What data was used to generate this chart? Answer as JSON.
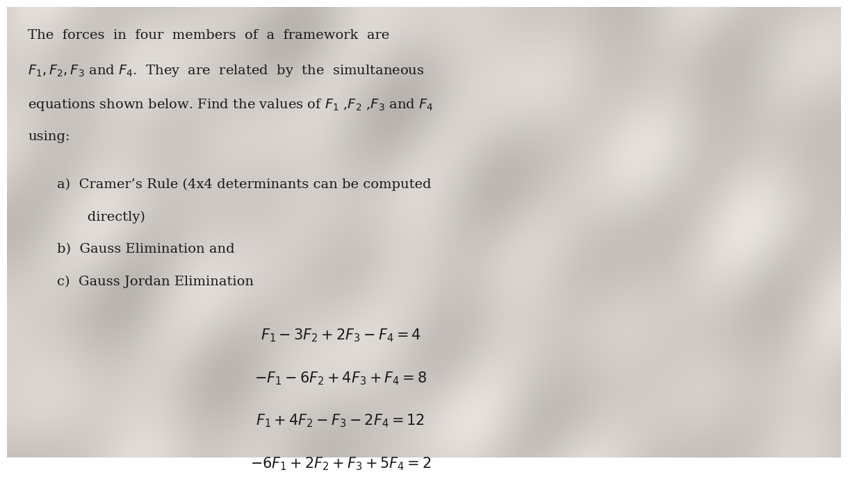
{
  "background_color_light": "#e8e4e0",
  "background_color_dark": "#b8b4b0",
  "text_color": "#1a1a1a",
  "fig_width": 12.0,
  "fig_height": 6.49,
  "line1": "The  forces  in  four  members  of  a  framework  are",
  "line2": "$F_1, F_2, F_3$ and $F_4$.  They  are  related  by  the  simultaneous",
  "line3": "equations shown below. Find the values of $F_1$ ,$F_2$ ,$F_3$ and $F_4$",
  "line4": "using:",
  "item_a1": "a)  Cramer’s Rule (4x4 determinants can be computed",
  "item_a2": "       directly)",
  "item_b": "b)  Gauss Elimination and",
  "item_c": "c)  Gauss Jordan Elimination",
  "eq1": "$F_1 - 3F_2 + 2F_3 - F_4 = 4$",
  "eq2": "$-F_1 - 6F_2 + 4F_3 + F_4 = 8$",
  "eq3": "$F_1 + 4F_2 - F_3 - 2F_4 = 12$",
  "eq4": "$-6F_1 + 2F_2 + F_3 + 5F_4 = 2$",
  "font_size_body": 14,
  "font_size_eq": 15,
  "font_family": "serif"
}
